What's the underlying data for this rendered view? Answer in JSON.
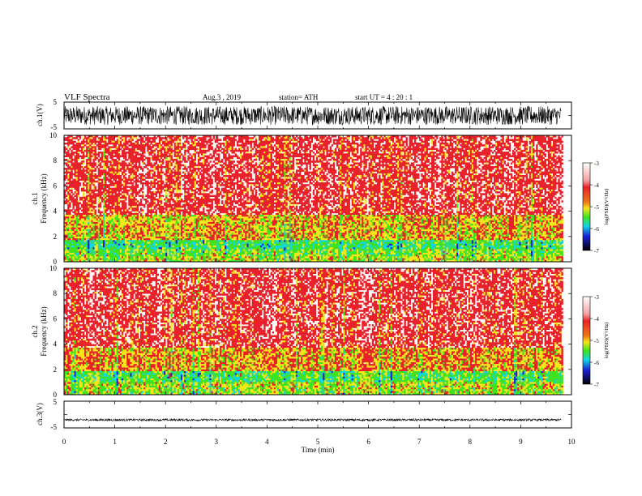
{
  "header": {
    "title": "VLF  Spectra",
    "date": "Aug.3  , 2019",
    "station": "station= ATH",
    "start": "start  UT  =   4  : 20 : 1"
  },
  "colors": {
    "high": "#e8212a",
    "mid_high": "#f4e61a",
    "mid": "#3fe21f",
    "mid_low": "#13d6e0",
    "low": "#1a21d8",
    "lowest": "#000000",
    "waveform": "#000000"
  },
  "colorbar": {
    "label": "log(PSD)(V²/Hz)",
    "ticks": [
      "-3",
      "-4",
      "-5",
      "-6",
      "-7"
    ]
  },
  "chart_data": [
    {
      "type": "line",
      "panel": "ch1-waveform",
      "ylabel": "ch.1(V)",
      "ylim": [
        -5,
        5
      ],
      "y_ticks": [
        "5",
        "-5"
      ],
      "xlim": [
        0,
        10
      ],
      "description_values": {
        "amplitude_range": [
          -3.5,
          3.5
        ],
        "offset": 0,
        "data_end_min": 9.8
      }
    },
    {
      "type": "heatmap",
      "panel": "ch1-spectrogram",
      "ylabel": "ch.1\nFrequency  (kHz)",
      "ylim": [
        0,
        10
      ],
      "y_ticks": [
        "0",
        "2",
        "4",
        "6",
        "8",
        "10"
      ],
      "xlim": [
        0,
        10
      ],
      "bands": [
        {
          "f_from": 0,
          "f_to": 0.5,
          "level": -4.6
        },
        {
          "f_from": 0.5,
          "f_to": 1.0,
          "level": -4.8
        },
        {
          "f_from": 1.0,
          "f_to": 1.7,
          "level": -5.1
        },
        {
          "f_from": 1.7,
          "f_to": 3.7,
          "level": -4.3
        },
        {
          "f_from": 3.7,
          "f_to": 10,
          "level": -3.6
        }
      ]
    },
    {
      "type": "heatmap",
      "panel": "ch2-spectrogram",
      "ylabel": "ch.2\nFrequency  (kHz)",
      "ylim": [
        0,
        10
      ],
      "y_ticks": [
        "0",
        "2",
        "4",
        "6",
        "8",
        "10"
      ],
      "xlim": [
        0,
        10
      ],
      "bands": [
        {
          "f_from": 0,
          "f_to": 0.5,
          "level": -4.7
        },
        {
          "f_from": 0.5,
          "f_to": 1.0,
          "level": -4.6
        },
        {
          "f_from": 1.0,
          "f_to": 1.8,
          "level": -5.0
        },
        {
          "f_from": 1.8,
          "f_to": 3.7,
          "level": -4.2
        },
        {
          "f_from": 3.7,
          "f_to": 10,
          "level": -3.6
        }
      ]
    },
    {
      "type": "line",
      "panel": "ch3-waveform",
      "ylabel": "ch.3(V)",
      "ylim": [
        -5,
        5
      ],
      "y_ticks": [
        "5",
        "-5"
      ],
      "xlim": [
        0,
        10
      ],
      "xlabel": "Time  (min)",
      "x_ticks": [
        "0",
        "1",
        "2",
        "3",
        "4",
        "5",
        "6",
        "7",
        "8",
        "9",
        "10"
      ],
      "description_values": {
        "amplitude_range": [
          -0.4,
          0.4
        ],
        "offset": -2,
        "data_end_min": 9.8
      }
    }
  ]
}
